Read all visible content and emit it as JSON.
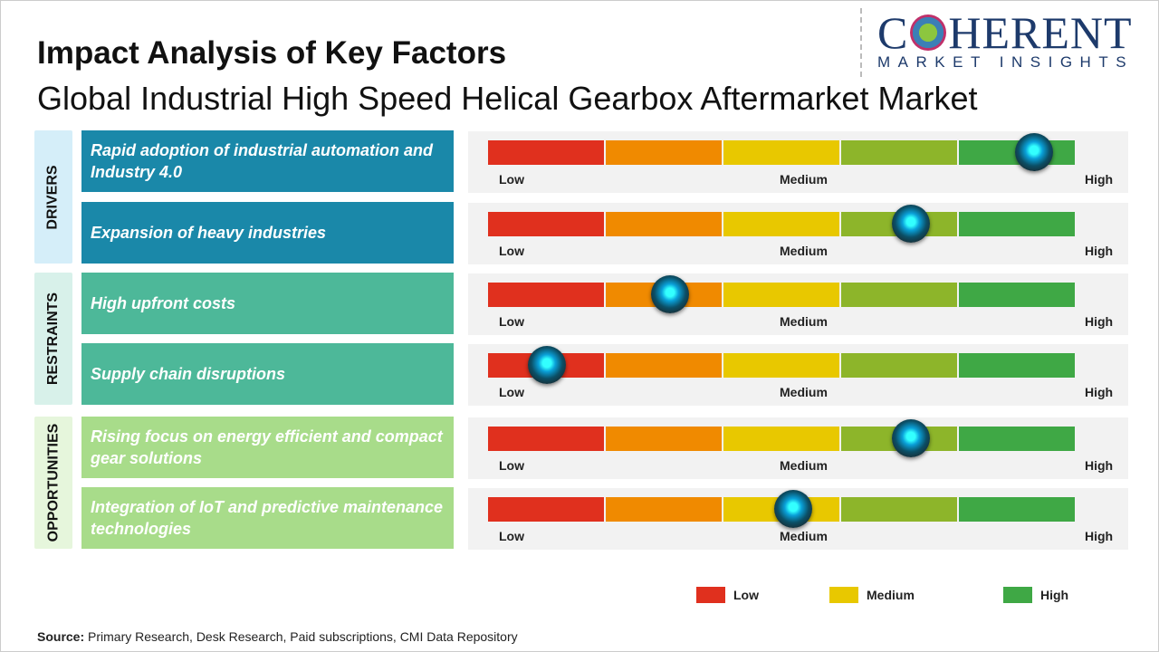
{
  "title": "Impact Analysis of Key Factors",
  "subtitle": "Global Industrial High Speed Helical Gearbox Aftermarket Market",
  "logo": {
    "brand": "COHERENT",
    "tagline": "MARKET INSIGHTS"
  },
  "scale_labels": {
    "low": "Low",
    "medium": "Medium",
    "high": "High"
  },
  "segment_colors": [
    "#e0301e",
    "#f08a00",
    "#e8c800",
    "#8db52a",
    "#3fa845"
  ],
  "chart_data": {
    "type": "gauge-table",
    "scale": [
      "Low",
      "Medium",
      "High"
    ],
    "groups": [
      {
        "name": "DRIVERS",
        "color": "#1a88a9",
        "bg": "#d5eef9",
        "factors": [
          {
            "label": "Rapid adoption of industrial automation and Industry 4.0",
            "impact": 0.93
          },
          {
            "label": "Expansion of heavy industries",
            "impact": 0.72
          }
        ]
      },
      {
        "name": "RESTRAINTS",
        "color": "#4db899",
        "bg": "#d8f1ea",
        "factors": [
          {
            "label": "High upfront costs",
            "impact": 0.31
          },
          {
            "label": "Supply chain disruptions",
            "impact": 0.1
          }
        ]
      },
      {
        "name": "OPPORTUNITIES",
        "color": "#a8dc8a",
        "bg": "#e6f6dc",
        "factors": [
          {
            "label": "Rising focus on energy efficient and compact gear solutions",
            "impact": 0.72
          },
          {
            "label": "Integration of IoT and predictive maintenance technologies",
            "impact": 0.52
          }
        ]
      }
    ],
    "legend": [
      {
        "label": "Low",
        "color": "#e0301e"
      },
      {
        "label": "Medium",
        "color": "#e8c800"
      },
      {
        "label": "High",
        "color": "#3fa845"
      }
    ]
  },
  "source": {
    "label": "Source:",
    "text": " Primary Research, Desk Research, Paid subscriptions, CMI Data Repository"
  }
}
